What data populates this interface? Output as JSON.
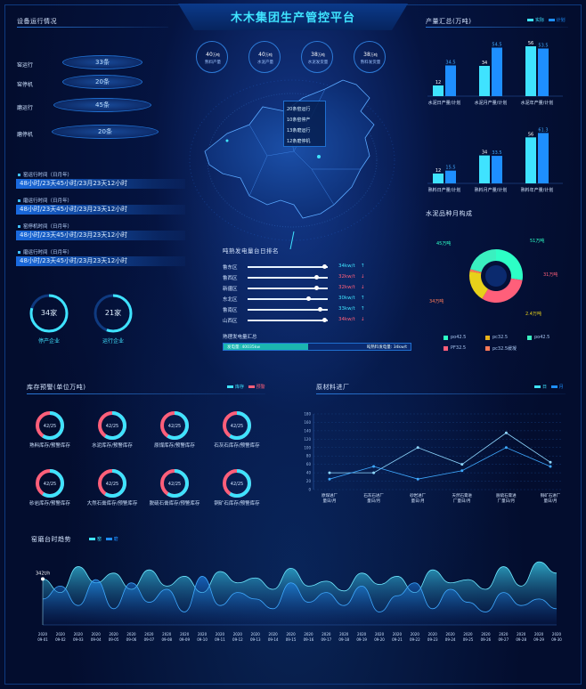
{
  "header": {
    "title": "木木集团生产管控平台"
  },
  "top_kpis": [
    {
      "value": "40",
      "unit": "万吨",
      "label": "熟料产量"
    },
    {
      "value": "40",
      "unit": "万吨",
      "label": "水泥产量"
    },
    {
      "value": "38",
      "unit": "万吨",
      "label": "水泥发货量"
    },
    {
      "value": "38",
      "unit": "万吨",
      "label": "熟料发货量"
    }
  ],
  "equipment": {
    "title": "设备运行情况",
    "items": [
      {
        "label": "窑运行",
        "value": "33条"
      },
      {
        "label": "窑停机",
        "value": "20条"
      },
      {
        "label": "磨运行",
        "value": "45条"
      },
      {
        "label": "磨停机",
        "value": "20条"
      }
    ],
    "run_times": [
      {
        "title": "窑运行时间（日月年）",
        "value": "48小时/23天45小时/23月23天12小时"
      },
      {
        "title": "磨运行时间（日月年）",
        "value": "48小时/23天45小时/23月23天12小时"
      },
      {
        "title": "窑停机时间（日月年）",
        "value": "48小时/23天45小时/23月23天12小时"
      },
      {
        "title": "磨运行时间（日月年）",
        "value": "48小时/23天45小时/23月23天12小时"
      }
    ],
    "enterprises": [
      {
        "value": "34家",
        "label": "停产企业"
      },
      {
        "value": "21家",
        "label": "运行企业"
      }
    ]
  },
  "map_panel": {
    "legend": [
      "20条窑运行",
      "10条窑停产",
      "13条磨运行",
      "12条磨停机"
    ],
    "ranking_title": "吨熟发电量台日排名",
    "ranking": [
      {
        "region": "鲁东区",
        "value": "34kw/t",
        "trend": "↑",
        "level": 0.95
      },
      {
        "region": "鲁西区",
        "value": "32kw/t",
        "trend": "↓",
        "level": 0.85
      },
      {
        "region": "新疆区",
        "value": "32kw/t",
        "trend": "↓",
        "level": 0.85
      },
      {
        "region": "东北区",
        "value": "30kw/t",
        "trend": "↑",
        "level": 0.75
      },
      {
        "region": "鲁南区",
        "value": "33kw/t",
        "trend": "↑",
        "level": 0.9
      },
      {
        "region": "山西区",
        "value": "34kw/t",
        "trend": "↓",
        "level": 0.95
      }
    ],
    "summary_title": "熟理发电量汇总",
    "summary_left": "发电量: 40035kw",
    "summary_right": "吨熟料发电量: 34kw/t"
  },
  "production": {
    "title": "产量汇总(万吨)",
    "legend": [
      "实际",
      "计划"
    ],
    "colors": {
      "actual": "#3fe3ff",
      "plan": "#1e8fff"
    }
  },
  "cement_types": {
    "title": "水泥品种月构成",
    "labels": [
      "45万吨",
      "51万吨",
      "31万吨",
      "2.4万吨",
      "34万吨"
    ],
    "legend": [
      "po42.5",
      "pc32.5",
      "po42.5",
      "PF32.5",
      "pc32.5缓凝"
    ]
  },
  "inventory": {
    "title": "库存预警(单位万吨)",
    "legend": [
      "库存",
      "预警"
    ],
    "value": "42/25",
    "items": [
      "熟料库存/预警库存",
      "水泥库存/预警库存",
      "原煤库存/预警库存",
      "石灰石库存/预警库存",
      "砂岩库存/预警库存",
      "大然石膏库存/预警库存",
      "脱硫石膏库存/预警库存",
      "铜矿石库存/预警库存"
    ]
  },
  "raw_material": {
    "title": "原材料进厂",
    "legend": [
      "日",
      "月"
    ]
  },
  "kiln_trend": {
    "title": "窑磨台时趋势",
    "legend": [
      "窑",
      "磨"
    ],
    "annotation": "342t/h"
  },
  "chart_data": [
    {
      "type": "bar",
      "title": "",
      "categories": [
        "水泥日产量/计划",
        "水泥月产量/计划",
        "水泥年产量/计划"
      ],
      "series": [
        {
          "name": "实际",
          "values": [
            12,
            34,
            56
          ]
        },
        {
          "name": "计划",
          "values": [
            34.5,
            54.5,
            53.5
          ]
        }
      ],
      "ylim": [
        0,
        60
      ]
    },
    {
      "type": "bar",
      "title": "",
      "categories": [
        "熟料日产量/计划",
        "熟料月产量/计划",
        "熟料年产量/计划"
      ],
      "series": [
        {
          "name": "实际",
          "values": [
            12,
            34,
            56
          ]
        },
        {
          "name": "计划",
          "values": [
            15.5,
            33.5,
            61.3
          ]
        }
      ],
      "ylim": [
        0,
        65
      ]
    },
    {
      "type": "pie",
      "categories": [
        "po42.5",
        "pc32.5",
        "po42.5",
        "PF32.5",
        "pc32.5缓凝"
      ],
      "values": [
        45,
        51,
        31,
        2.4,
        34
      ],
      "colors": [
        "#2dffc6",
        "#e8b21a",
        "#3af0c0",
        "#ff5f7a",
        "#ff7a58"
      ]
    },
    {
      "type": "line",
      "categories": [
        "原煤进厂量日/月",
        "石灰石进厂量日/月",
        "砂岩进厂量日/月",
        "天然石膏进厂量日/月",
        "脱硫石膏进厂量日/月",
        "铜矿石进厂量日/月"
      ],
      "yticks": [
        0,
        20,
        40,
        60,
        80,
        100,
        120,
        140,
        160,
        180
      ],
      "series": [
        {
          "name": "日",
          "values": [
            40,
            40,
            100,
            60,
            135,
            65
          ]
        },
        {
          "name": "月",
          "values": [
            25,
            55,
            25,
            45,
            100,
            55
          ]
        }
      ],
      "ylim": [
        0,
        180
      ]
    },
    {
      "type": "area",
      "categories": [
        "2020 09-01",
        "2020 09-02",
        "2020 09-03",
        "2020 09-04",
        "2020 09-05",
        "2020 09-06",
        "2020 09-07",
        "2020 09-08",
        "2020 09-09",
        "2020 09-10",
        "2020 09-11",
        "2020 09-12",
        "2020 09-13",
        "2020 09-14",
        "2020 09-15",
        "2020 09-16",
        "2020 09-17",
        "2020 09-18",
        "2020 09-19",
        "2020 09-20",
        "2020 09-21",
        "2020 09-22",
        "2020 09-23",
        "2020 09-24",
        "2020 09-25",
        "2020 09-26",
        "2020 09-27",
        "2020 09-28",
        "2020 09-29",
        "2020 09-30"
      ],
      "series": [
        {
          "name": "窑",
          "values": [
            342,
            300,
            380,
            330,
            360,
            310,
            370,
            320,
            350,
            300,
            365,
            330,
            345,
            310,
            375,
            320,
            335,
            305,
            360,
            325,
            350,
            300,
            370,
            330,
            340,
            310,
            380,
            320,
            395,
            360
          ]
        },
        {
          "name": "磨",
          "values": [
            280,
            320,
            260,
            340,
            250,
            330,
            270,
            310,
            240,
            350,
            260,
            300,
            280,
            250,
            330,
            270,
            300,
            260,
            320,
            240,
            290,
            330,
            250,
            310,
            270,
            240,
            300,
            260,
            280,
            250
          ]
        }
      ]
    }
  ]
}
